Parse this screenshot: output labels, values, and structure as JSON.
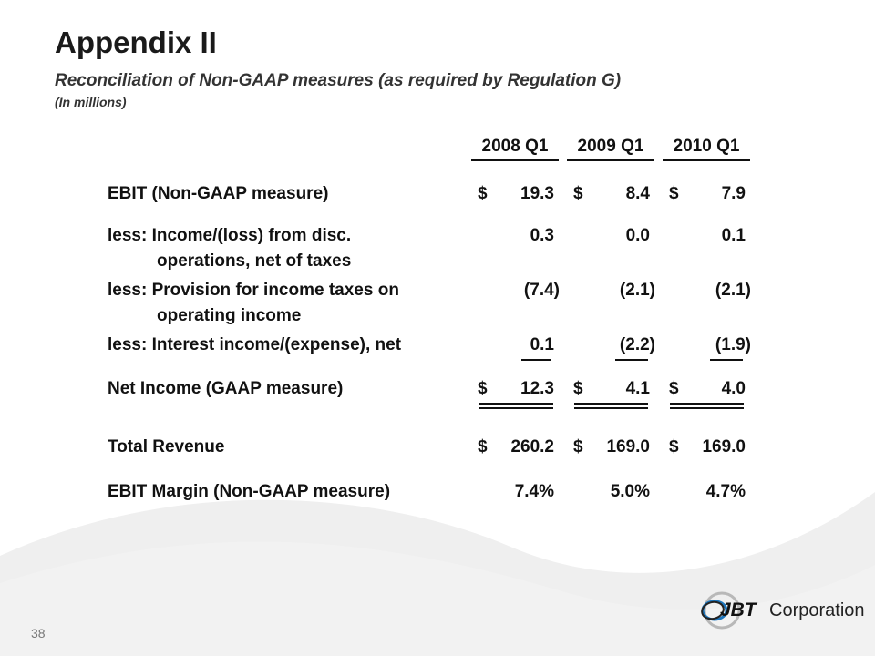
{
  "title": "Appendix II",
  "subtitle": "Reconciliation of Non-GAAP measures (as required by Regulation G)",
  "units": "(In millions)",
  "columns": [
    "2008 Q1",
    "2009 Q1",
    "2010 Q1"
  ],
  "rows": [
    {
      "label": "EBIT (Non-GAAP measure)",
      "values": [
        "19.3",
        "8.4",
        "7.9"
      ],
      "dollar": true
    },
    {
      "label": "less: Income/(loss) from disc.",
      "label2": "operations, net of taxes",
      "values": [
        "0.3",
        "0.0",
        "0.1"
      ]
    },
    {
      "label": "less: Provision for income taxes on",
      "label2": "operating income",
      "values": [
        "(7.4)",
        "(2.1)",
        "(2.1)"
      ]
    },
    {
      "label": "less: Interest income/(expense), net",
      "values": [
        "0.1",
        "(2.2)",
        "(1.9)"
      ]
    },
    {
      "label": "Net Income (GAAP measure)",
      "values": [
        "12.3",
        "4.1",
        "4.0"
      ],
      "dollar": true
    },
    {
      "label": "Total Revenue",
      "values": [
        "260.2",
        "169.0",
        "169.0"
      ],
      "dollar": true
    },
    {
      "label": "EBIT Margin (Non-GAAP measure)",
      "values": [
        "7.4%",
        "5.0%",
        "4.7%"
      ]
    }
  ],
  "dollar_sign": "$",
  "page_number": "38",
  "logo": {
    "mark": "JBT",
    "text": "Corporation"
  },
  "colors": {
    "logo_blue": "#1c75bc",
    "wave_gray": "#eeeeee"
  }
}
